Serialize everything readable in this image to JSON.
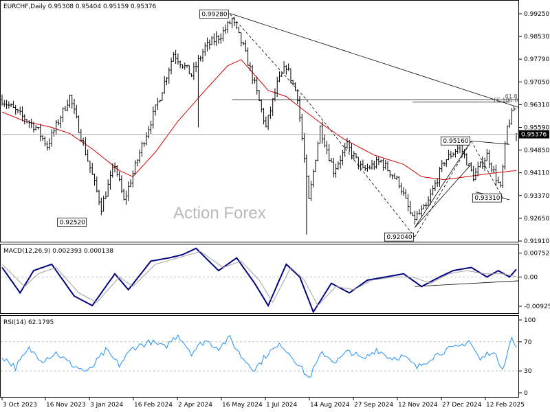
{
  "colors": {
    "price": "#000000",
    "ma": "#d40000",
    "macd": "#000080",
    "signal": "#a0a0a0",
    "rsi": "#1e90ff",
    "grid": "#c0c0c0",
    "frame": "#000000",
    "current_price_bg": "#000000",
    "current_price_fg": "#ffffff"
  },
  "watermark": "Action Forex",
  "chart_data": [
    {
      "type": "bar",
      "panel": "price",
      "header": "EURCHF,Daily  0.95308 0.95404 0.95159 0.95376",
      "title": "",
      "ylim": [
        0.9191,
        0.9929
      ],
      "y_ticks": [
        "0.99250",
        "0.98530",
        "0.97790",
        "0.97050",
        "0.96310",
        "0.95590",
        "0.94850",
        "0.94110",
        "0.93370",
        "0.92650",
        "0.91910"
      ],
      "current_price": "0.95376",
      "x_labels": [
        "3 Oct 2023",
        "16 Nov 2023",
        "3 Jan 2024",
        "16 Feb 2024",
        "2 Apr 2024",
        "16 May 2024",
        "1 Jul 2024",
        "14 Aug 2024",
        "27 Sep 2024",
        "12 Nov 2024",
        "27 Dec 2024",
        "12 Feb 2025"
      ],
      "anchors": [
        {
          "i": 0,
          "v": 0.965
        },
        {
          "i": 8,
          "v": 0.96
        },
        {
          "i": 15,
          "v": 0.956
        },
        {
          "i": 20,
          "v": 0.95
        },
        {
          "i": 30,
          "v": 0.966
        },
        {
          "i": 37,
          "v": 0.948
        },
        {
          "i": 44,
          "v": 0.93
        },
        {
          "i": 50,
          "v": 0.944
        },
        {
          "i": 54,
          "v": 0.932
        },
        {
          "i": 62,
          "v": 0.95
        },
        {
          "i": 70,
          "v": 0.966
        },
        {
          "i": 76,
          "v": 0.98
        },
        {
          "i": 84,
          "v": 0.973
        },
        {
          "i": 90,
          "v": 0.982
        },
        {
          "i": 97,
          "v": 0.986
        },
        {
          "i": 102,
          "v": 0.991
        },
        {
          "i": 107,
          "v": 0.982
        },
        {
          "i": 112,
          "v": 0.97
        },
        {
          "i": 117,
          "v": 0.956
        },
        {
          "i": 122,
          "v": 0.97
        },
        {
          "i": 126,
          "v": 0.976
        },
        {
          "i": 131,
          "v": 0.966
        },
        {
          "i": 136,
          "v": 0.932
        },
        {
          "i": 141,
          "v": 0.956
        },
        {
          "i": 147,
          "v": 0.942
        },
        {
          "i": 153,
          "v": 0.95
        },
        {
          "i": 160,
          "v": 0.942
        },
        {
          "i": 168,
          "v": 0.945
        },
        {
          "i": 176,
          "v": 0.938
        },
        {
          "i": 182,
          "v": 0.926
        },
        {
          "i": 188,
          "v": 0.93
        },
        {
          "i": 196,
          "v": 0.945
        },
        {
          "i": 203,
          "v": 0.95
        },
        {
          "i": 209,
          "v": 0.94
        },
        {
          "i": 215,
          "v": 0.947
        },
        {
          "i": 221,
          "v": 0.936
        },
        {
          "i": 224,
          "v": 0.956
        },
        {
          "i": 227,
          "v": 0.962
        },
        {
          "i": 228,
          "v": 0.9538
        }
      ],
      "moving_average": [
        {
          "i": 0,
          "v": 0.961
        },
        {
          "i": 10,
          "v": 0.958
        },
        {
          "i": 22,
          "v": 0.956
        },
        {
          "i": 30,
          "v": 0.954
        },
        {
          "i": 40,
          "v": 0.949
        },
        {
          "i": 52,
          "v": 0.942
        },
        {
          "i": 58,
          "v": 0.94
        },
        {
          "i": 68,
          "v": 0.948
        },
        {
          "i": 78,
          "v": 0.958
        },
        {
          "i": 90,
          "v": 0.968
        },
        {
          "i": 100,
          "v": 0.976
        },
        {
          "i": 106,
          "v": 0.978
        },
        {
          "i": 112,
          "v": 0.973
        },
        {
          "i": 118,
          "v": 0.968
        },
        {
          "i": 126,
          "v": 0.966
        },
        {
          "i": 133,
          "v": 0.962
        },
        {
          "i": 142,
          "v": 0.957
        },
        {
          "i": 152,
          "v": 0.952
        },
        {
          "i": 165,
          "v": 0.947
        },
        {
          "i": 178,
          "v": 0.944
        },
        {
          "i": 186,
          "v": 0.94
        },
        {
          "i": 196,
          "v": 0.939
        },
        {
          "i": 206,
          "v": 0.94
        },
        {
          "i": 216,
          "v": 0.941
        },
        {
          "i": 228,
          "v": 0.942
        }
      ],
      "spikes": [
        {
          "i": 87,
          "low": 0.956
        },
        {
          "i": 135,
          "low": 0.9212
        }
      ],
      "swing_labels": [
        {
          "text": "0.99280",
          "i": 101,
          "v": 0.9928,
          "place": "left"
        },
        {
          "text": "0.92520",
          "i": 38,
          "v": 0.9252,
          "place": "left"
        },
        {
          "text": "0.92040",
          "i": 183,
          "v": 0.9204,
          "place": "left"
        },
        {
          "text": "0.95160",
          "i": 208,
          "v": 0.9516,
          "place": "left"
        },
        {
          "text": "0.93310",
          "i": 222,
          "v": 0.9331,
          "place": "left"
        }
      ],
      "annotations": [
        {
          "text": "61.8",
          "i": 223,
          "v": 0.965
        },
        {
          "text": "FE 100.0",
          "i": 218,
          "v": 0.9638
        }
      ],
      "trend_lines": [
        {
          "from": {
            "i": 101,
            "v": 0.993
          },
          "to": {
            "i": 229,
            "v": 0.9625
          },
          "style": "solid"
        },
        {
          "from": {
            "i": 101,
            "v": 0.9928
          },
          "to": {
            "i": 135,
            "v": 0.965
          },
          "style": "dashed"
        },
        {
          "from": {
            "i": 135,
            "v": 0.965
          },
          "to": {
            "i": 183,
            "v": 0.9204
          },
          "style": "dashed"
        },
        {
          "from": {
            "i": 183,
            "v": 0.9204
          },
          "to": {
            "i": 208,
            "v": 0.9516
          },
          "style": "dashed"
        },
        {
          "from": {
            "i": 208,
            "v": 0.9516
          },
          "to": {
            "i": 222,
            "v": 0.9331
          },
          "style": "dashed"
        },
        {
          "from": {
            "i": 183,
            "v": 0.9235
          },
          "to": {
            "i": 208,
            "v": 0.9516
          },
          "style": "solid"
        },
        {
          "from": {
            "i": 183,
            "v": 0.9235
          },
          "to": {
            "i": 208,
            "v": 0.944
          },
          "style": "solid"
        },
        {
          "from": {
            "i": 208,
            "v": 0.9516
          },
          "to": {
            "i": 225,
            "v": 0.9505
          },
          "style": "solid"
        },
        {
          "from": {
            "i": 210,
            "v": 0.935
          },
          "to": {
            "i": 225,
            "v": 0.9325
          },
          "style": "solid"
        },
        {
          "from": {
            "i": 102,
            "v": 0.965
          },
          "to": {
            "i": 229,
            "v": 0.965
          },
          "style": "solid"
        },
        {
          "from": {
            "i": 182,
            "v": 0.9642
          },
          "to": {
            "i": 225,
            "v": 0.9642
          },
          "style": "solid"
        },
        {
          "from": {
            "i": 0,
            "v": 0.9538
          },
          "to": {
            "i": 229,
            "v": 0.9538
          },
          "style": "grey"
        }
      ]
    },
    {
      "type": "line",
      "panel": "macd",
      "header": "MACD(12,26,9) 0.002393 0.000138",
      "title": "",
      "ylim": [
        -0.0105,
        0.0085
      ],
      "y_ticks": [
        "0.007526",
        "0.00",
        "-0.009252"
      ],
      "zero_line": 0,
      "series": [
        {
          "name": "",
          "role": "macd",
          "points": [
            {
              "i": 0,
              "v": 0.003
            },
            {
              "i": 8,
              "v": -0.005
            },
            {
              "i": 14,
              "v": 0.002
            },
            {
              "i": 22,
              "v": 0.004
            },
            {
              "i": 32,
              "v": -0.006
            },
            {
              "i": 40,
              "v": -0.009
            },
            {
              "i": 50,
              "v": 0.001
            },
            {
              "i": 56,
              "v": -0.004
            },
            {
              "i": 66,
              "v": 0.005
            },
            {
              "i": 74,
              "v": 0.006
            },
            {
              "i": 80,
              "v": 0.007
            },
            {
              "i": 86,
              "v": 0.009
            },
            {
              "i": 96,
              "v": 0.002
            },
            {
              "i": 104,
              "v": 0.006
            },
            {
              "i": 112,
              "v": -0.002
            },
            {
              "i": 118,
              "v": -0.009
            },
            {
              "i": 126,
              "v": 0.004
            },
            {
              "i": 132,
              "v": 0.0
            },
            {
              "i": 138,
              "v": -0.011
            },
            {
              "i": 146,
              "v": -0.002
            },
            {
              "i": 154,
              "v": -0.005
            },
            {
              "i": 162,
              "v": -0.001
            },
            {
              "i": 170,
              "v": 0.0
            },
            {
              "i": 178,
              "v": 0.001
            },
            {
              "i": 186,
              "v": -0.003
            },
            {
              "i": 194,
              "v": 0.0
            },
            {
              "i": 200,
              "v": 0.002
            },
            {
              "i": 208,
              "v": 0.003
            },
            {
              "i": 215,
              "v": 0.0
            },
            {
              "i": 220,
              "v": 0.002
            },
            {
              "i": 225,
              "v": 0.0
            },
            {
              "i": 228,
              "v": 0.0024
            }
          ]
        },
        {
          "name": "",
          "role": "signal",
          "points": [
            {
              "i": 0,
              "v": 0.004
            },
            {
              "i": 10,
              "v": -0.003
            },
            {
              "i": 16,
              "v": 0.001
            },
            {
              "i": 24,
              "v": 0.003
            },
            {
              "i": 34,
              "v": -0.005
            },
            {
              "i": 42,
              "v": -0.008
            },
            {
              "i": 52,
              "v": 0.0
            },
            {
              "i": 58,
              "v": -0.003
            },
            {
              "i": 68,
              "v": 0.004
            },
            {
              "i": 78,
              "v": 0.006
            },
            {
              "i": 88,
              "v": 0.008
            },
            {
              "i": 98,
              "v": 0.003
            },
            {
              "i": 106,
              "v": 0.005
            },
            {
              "i": 114,
              "v": -0.001
            },
            {
              "i": 120,
              "v": -0.008
            },
            {
              "i": 128,
              "v": 0.003
            },
            {
              "i": 134,
              "v": -0.001
            },
            {
              "i": 140,
              "v": -0.009
            },
            {
              "i": 148,
              "v": -0.003
            },
            {
              "i": 156,
              "v": -0.004
            },
            {
              "i": 164,
              "v": -0.001
            },
            {
              "i": 174,
              "v": 0.0
            },
            {
              "i": 182,
              "v": 0.0
            },
            {
              "i": 190,
              "v": -0.002
            },
            {
              "i": 198,
              "v": 0.001
            },
            {
              "i": 206,
              "v": 0.002
            },
            {
              "i": 214,
              "v": 0.001
            },
            {
              "i": 222,
              "v": 0.001
            },
            {
              "i": 228,
              "v": 0.0001
            }
          ]
        }
      ],
      "trend_lines": [
        {
          "from": {
            "i": 183,
            "v": -0.003
          },
          "to": {
            "i": 229,
            "v": -0.0012
          }
        }
      ]
    },
    {
      "type": "line",
      "panel": "rsi",
      "header": "RSI(14) 62.1795",
      "title": "",
      "ylim": [
        0,
        100
      ],
      "y_ticks": [
        "100",
        "70",
        "30",
        "0"
      ],
      "levels": [
        70,
        30
      ],
      "series": [
        {
          "name": "",
          "points": [
            {
              "i": 0,
              "v": 50
            },
            {
              "i": 6,
              "v": 35
            },
            {
              "i": 12,
              "v": 60
            },
            {
              "i": 18,
              "v": 45
            },
            {
              "i": 24,
              "v": 55
            },
            {
              "i": 30,
              "v": 40
            },
            {
              "i": 38,
              "v": 28
            },
            {
              "i": 46,
              "v": 58
            },
            {
              "i": 52,
              "v": 38
            },
            {
              "i": 58,
              "v": 62
            },
            {
              "i": 66,
              "v": 70
            },
            {
              "i": 72,
              "v": 62
            },
            {
              "i": 78,
              "v": 80
            },
            {
              "i": 84,
              "v": 55
            },
            {
              "i": 90,
              "v": 72
            },
            {
              "i": 96,
              "v": 62
            },
            {
              "i": 101,
              "v": 75
            },
            {
              "i": 106,
              "v": 50
            },
            {
              "i": 112,
              "v": 32
            },
            {
              "i": 118,
              "v": 55
            },
            {
              "i": 124,
              "v": 66
            },
            {
              "i": 130,
              "v": 45
            },
            {
              "i": 136,
              "v": 20
            },
            {
              "i": 142,
              "v": 55
            },
            {
              "i": 148,
              "v": 42
            },
            {
              "i": 154,
              "v": 58
            },
            {
              "i": 160,
              "v": 45
            },
            {
              "i": 166,
              "v": 60
            },
            {
              "i": 172,
              "v": 48
            },
            {
              "i": 178,
              "v": 50
            },
            {
              "i": 184,
              "v": 34
            },
            {
              "i": 190,
              "v": 48
            },
            {
              "i": 196,
              "v": 58
            },
            {
              "i": 202,
              "v": 62
            },
            {
              "i": 207,
              "v": 72
            },
            {
              "i": 212,
              "v": 45
            },
            {
              "i": 217,
              "v": 58
            },
            {
              "i": 222,
              "v": 35
            },
            {
              "i": 226,
              "v": 75
            },
            {
              "i": 228,
              "v": 62.18
            }
          ]
        }
      ]
    }
  ]
}
